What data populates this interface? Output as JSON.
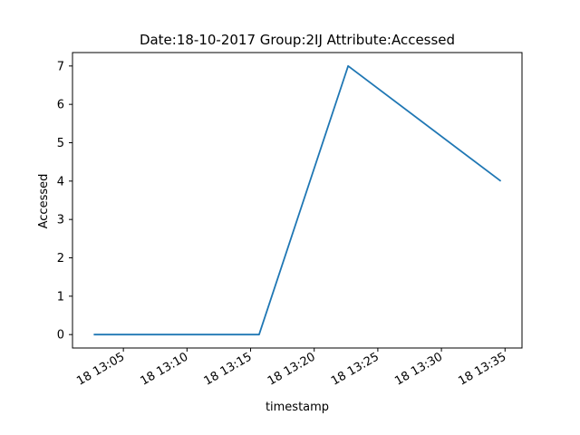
{
  "chart_data": {
    "type": "line",
    "title": "Date:18-10-2017  Group:2IJ Attribute:Accessed",
    "xlabel": "timestamp",
    "ylabel": "Accessed",
    "x": [
      "2017-10-18 13:02:40",
      "2017-10-18 13:15:40",
      "2017-10-18 13:22:40",
      "2017-10-18 13:34:40"
    ],
    "series": [
      {
        "values": [
          0,
          0,
          7,
          4
        ],
        "color": "#1f77b4"
      }
    ],
    "xlim": [
      "2017-10-18 13:01:00",
      "2017-10-18 13:36:20"
    ],
    "ylim": [
      -0.35,
      7.35
    ],
    "x_ticks": [
      {
        "t": "2017-10-18 13:05:00",
        "label": "18 13:05"
      },
      {
        "t": "2017-10-18 13:10:00",
        "label": "18 13:10"
      },
      {
        "t": "2017-10-18 13:15:00",
        "label": "18 13:15"
      },
      {
        "t": "2017-10-18 13:20:00",
        "label": "18 13:20"
      },
      {
        "t": "2017-10-18 13:25:00",
        "label": "18 13:25"
      },
      {
        "t": "2017-10-18 13:30:00",
        "label": "18 13:30"
      },
      {
        "t": "2017-10-18 13:35:00",
        "label": "18 13:35"
      }
    ],
    "y_ticks": [
      0,
      1,
      2,
      3,
      4,
      5,
      6,
      7
    ],
    "grid": false,
    "legend": false
  }
}
